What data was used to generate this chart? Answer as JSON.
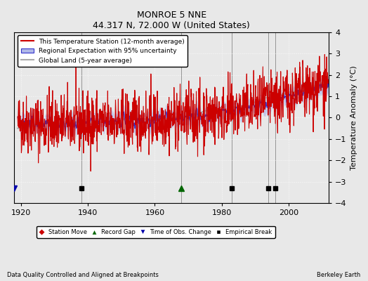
{
  "title": "MONROE 5 NNE",
  "subtitle": "44.317 N, 72.000 W (United States)",
  "ylabel": "Temperature Anomaly (°C)",
  "xlabel_left": "Data Quality Controlled and Aligned at Breakpoints",
  "xlabel_right": "Berkeley Earth",
  "ylim": [
    -4,
    4
  ],
  "xlim": [
    1918,
    2012
  ],
  "xticks": [
    1920,
    1940,
    1960,
    1980,
    2000
  ],
  "yticks": [
    -4,
    -3,
    -2,
    -1,
    0,
    1,
    2,
    3,
    4
  ],
  "background_color": "#e8e8e8",
  "plot_bg_color": "#e8e8e8",
  "station_move": [],
  "record_gap": [
    1968
  ],
  "time_obs_change": [
    1918
  ],
  "empirical_break": [
    1938,
    1983,
    1994,
    1996
  ],
  "legend_entries": [
    "This Temperature Station (12-month average)",
    "Regional Expectation with 95% uncertainty",
    "Global Land (5-year average)"
  ]
}
